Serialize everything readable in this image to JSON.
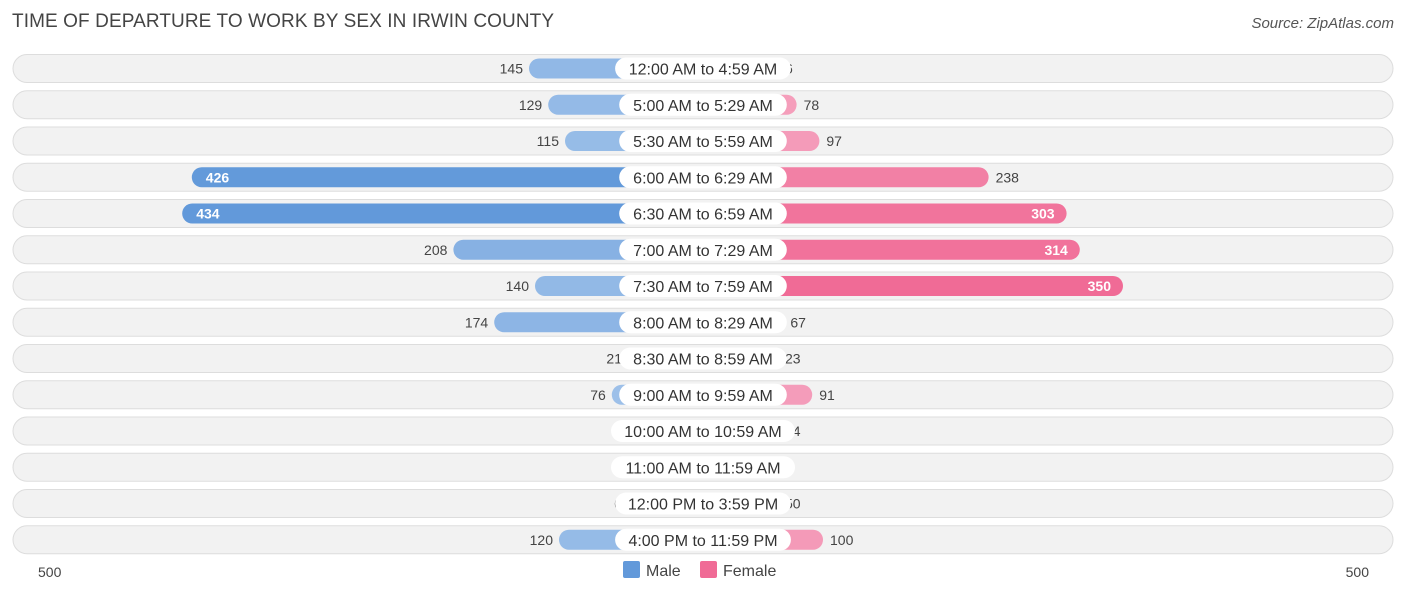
{
  "header": {
    "title": "TIME OF DEPARTURE TO WORK BY SEX IN IRWIN COUNTY",
    "source": "Source: ZipAtlas.com"
  },
  "colors": {
    "male_dark": "#6299da",
    "male_light": "#a9c8ec",
    "female_dark": "#f06b96",
    "female_light": "#f6adc6"
  },
  "chart_data": {
    "type": "bar",
    "orientation": "horizontal-diverging",
    "title": "TIME OF DEPARTURE TO WORK BY SEX IN IRWIN COUNTY",
    "categories": [
      "12:00 AM to 4:59 AM",
      "5:00 AM to 5:29 AM",
      "5:30 AM to 5:59 AM",
      "6:00 AM to 6:29 AM",
      "6:30 AM to 6:59 AM",
      "7:00 AM to 7:29 AM",
      "7:30 AM to 7:59 AM",
      "8:00 AM to 8:29 AM",
      "8:30 AM to 8:59 AM",
      "9:00 AM to 9:59 AM",
      "10:00 AM to 10:59 AM",
      "11:00 AM to 11:59 AM",
      "12:00 PM to 3:59 PM",
      "4:00 PM to 11:59 PM"
    ],
    "series": [
      {
        "name": "Male",
        "values": [
          145,
          129,
          115,
          426,
          434,
          208,
          140,
          174,
          21,
          76,
          0,
          0,
          0,
          120
        ]
      },
      {
        "name": "Female",
        "values": [
          6,
          78,
          97,
          238,
          303,
          314,
          350,
          67,
          23,
          91,
          14,
          0,
          50,
          100
        ]
      }
    ],
    "axis": {
      "min_label": "500",
      "max_label": "500",
      "range": [
        0,
        500
      ]
    },
    "legend": {
      "position": "bottom-center",
      "entries": [
        "Male",
        "Female"
      ]
    }
  }
}
